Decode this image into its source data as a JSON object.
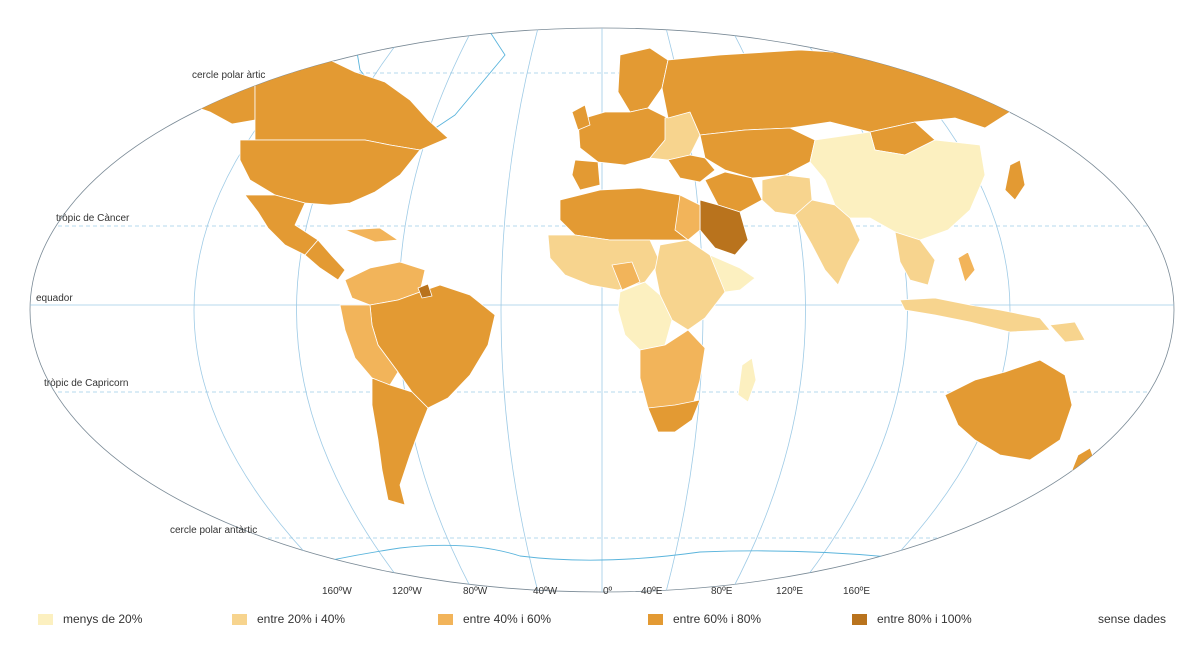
{
  "map": {
    "parallels": [
      {
        "id": "arctic",
        "label": "cercle polar àrtic"
      },
      {
        "id": "cancer",
        "label": "tròpic de Càncer"
      },
      {
        "id": "equator",
        "label": "equador"
      },
      {
        "id": "capricorn",
        "label": "tròpic de Capricorn"
      },
      {
        "id": "antarctic",
        "label": "cercle polar antàrtic"
      }
    ],
    "meridians": [
      "160ºW",
      "120ºW",
      "80ºW",
      "40ºW",
      "0º",
      "40ºE",
      "80ºE",
      "120ºE",
      "160ºE"
    ]
  },
  "legend": {
    "items": [
      {
        "label": "menys de 20%",
        "color": "#fcf0c0"
      },
      {
        "label": "entre 20% i 40%",
        "color": "#f7d48e"
      },
      {
        "label": "entre 40% i 60%",
        "color": "#f2b45a"
      },
      {
        "label": "entre 60% i 80%",
        "color": "#e39a33"
      },
      {
        "label": "entre 80% i 100%",
        "color": "#b9731d"
      }
    ],
    "no_data": "sense dades"
  },
  "colors": {
    "lt20": "#fcf0c0",
    "p20_40": "#f7d48e",
    "p40_60": "#f2b45a",
    "p60_80": "#e39a33",
    "p80_100": "#b9731d",
    "border": "#ffffff",
    "coast_nodata": "#5ab4dc",
    "graticule": "#9fcbe6"
  }
}
